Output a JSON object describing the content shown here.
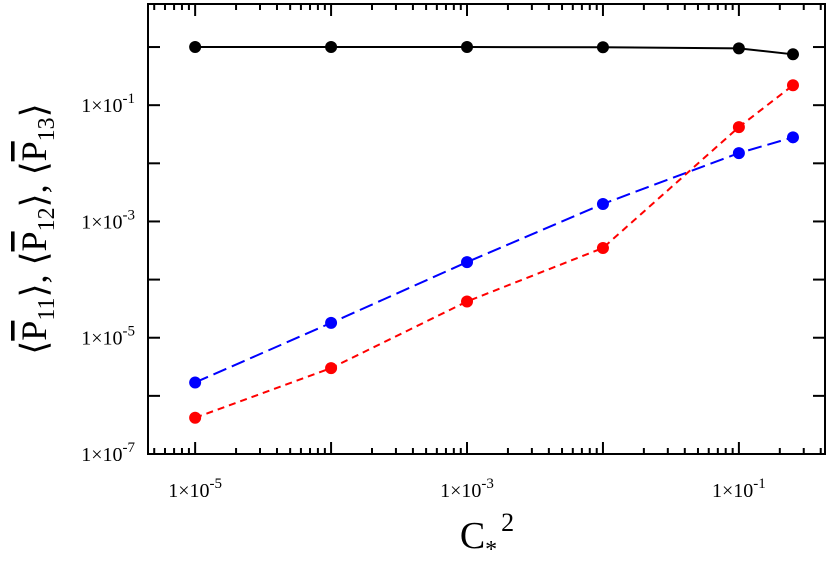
{
  "chart_data": {
    "type": "line",
    "x_scale": "log",
    "y_scale": "log",
    "xlim": [
      4.5e-06,
      0.43
    ],
    "ylim": [
      1e-07,
      5.5
    ],
    "grid": false,
    "xlabel": {
      "base": "C",
      "subscript": "*",
      "superscript": "2"
    },
    "ylabel": {
      "parts": [
        "⟨",
        "P",
        "11",
        "⟩, ⟨",
        "P",
        "12",
        "⟩, ⟨",
        "P",
        "13",
        "⟩"
      ]
    },
    "x_ticks": [
      {
        "value": 1e-05,
        "label": "1×10",
        "exp": "-5"
      },
      {
        "value": 0.001,
        "label": "1×10",
        "exp": "-3"
      },
      {
        "value": 0.1,
        "label": "1×10",
        "exp": "-1"
      }
    ],
    "y_ticks": [
      {
        "value": 1e-07,
        "label": "1×10",
        "exp": "-7"
      },
      {
        "value": 1e-05,
        "label": "1×10",
        "exp": "-5"
      },
      {
        "value": 0.001,
        "label": "1×10",
        "exp": "-3"
      },
      {
        "value": 0.1,
        "label": "1×10",
        "exp": "-1"
      }
    ],
    "series": [
      {
        "color": "#000000",
        "dash": "solid",
        "x": [
          1e-05,
          0.0001,
          0.001,
          0.01,
          0.1,
          0.25
        ],
        "y": [
          1.0,
          1.0,
          1.0,
          0.99,
          0.95,
          0.75
        ]
      },
      {
        "color": "#0000ff",
        "dash": "long-dash",
        "x": [
          1e-05,
          0.0001,
          0.001,
          0.01,
          0.1,
          0.25
        ],
        "y": [
          1.7e-06,
          1.8e-05,
          0.0002,
          0.002,
          0.015,
          0.028
        ]
      },
      {
        "color": "#ff0000",
        "dash": "short-dash",
        "x": [
          1e-05,
          0.0001,
          0.001,
          0.01,
          0.1,
          0.25
        ],
        "y": [
          4.2e-07,
          3e-06,
          4.2e-05,
          0.00035,
          0.042,
          0.22
        ]
      }
    ]
  }
}
